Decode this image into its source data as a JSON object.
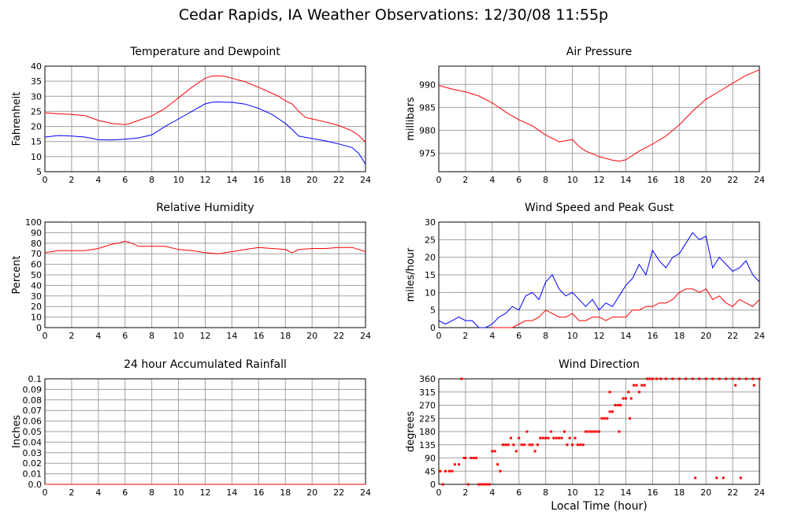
{
  "page": {
    "title": "Cedar Rapids, IA Weather Observations: 12/30/08 11:55p",
    "xlabel": "Local Time (hour)"
  },
  "chart_data": [
    {
      "id": "temp",
      "type": "line",
      "title": "Temperature and Dewpoint",
      "xlabel": "",
      "ylabel": "Fahrenheit",
      "xlim": [
        0,
        24
      ],
      "ylim": [
        5,
        40
      ],
      "xticks": [
        0,
        2,
        4,
        6,
        8,
        10,
        12,
        14,
        16,
        18,
        20,
        22,
        24
      ],
      "yticks": [
        5,
        10,
        15,
        20,
        25,
        30,
        35,
        40
      ],
      "grid": true,
      "series": [
        {
          "name": "",
          "color": "#ff0000",
          "x": [
            0,
            1,
            2,
            3,
            4,
            4.5,
            5,
            5.5,
            6,
            6.5,
            7,
            8,
            9,
            10,
            11,
            12,
            12.5,
            13,
            13.5,
            14,
            15,
            16,
            17,
            17.5,
            18,
            18.5,
            19,
            19.5,
            20,
            21,
            22,
            23,
            23.5,
            24
          ],
          "y": [
            24.5,
            24.2,
            24.0,
            23.6,
            22.0,
            21.5,
            21.0,
            20.8,
            20.6,
            21.2,
            22.0,
            23.5,
            26.0,
            29.5,
            33.0,
            36.0,
            36.7,
            36.8,
            36.6,
            36.0,
            34.8,
            33.0,
            31.0,
            30.0,
            28.5,
            27.5,
            25.0,
            23.0,
            22.5,
            21.5,
            20.3,
            18.5,
            17.0,
            14.8
          ]
        },
        {
          "name": "",
          "color": "#0000ff",
          "x": [
            0,
            1,
            2,
            3,
            4,
            5,
            6,
            7,
            8,
            9,
            10,
            11,
            12,
            12.5,
            13,
            13.5,
            14,
            15,
            16,
            17,
            17.5,
            18,
            18.5,
            19,
            20,
            21,
            22,
            23,
            23.5,
            24
          ],
          "y": [
            16.5,
            17.0,
            16.8,
            16.5,
            15.6,
            15.5,
            15.8,
            16.2,
            17.2,
            20.0,
            22.5,
            25.0,
            27.5,
            28.0,
            28.2,
            28.0,
            28.0,
            27.4,
            26.0,
            24.0,
            22.5,
            21.0,
            19.0,
            16.8,
            16.0,
            15.2,
            14.2,
            13.0,
            11.0,
            7.5
          ]
        }
      ]
    },
    {
      "id": "pressure",
      "type": "line",
      "title": "Air Pressure",
      "xlabel": "",
      "ylabel": "millibars",
      "xlim": [
        0,
        24
      ],
      "ylim": [
        971,
        994
      ],
      "xticks": [
        0,
        2,
        4,
        6,
        8,
        10,
        12,
        14,
        16,
        18,
        20,
        22,
        24
      ],
      "yticks": [
        975,
        980,
        985,
        990
      ],
      "grid": true,
      "series": [
        {
          "name": "",
          "color": "#ff0000",
          "x": [
            0,
            1,
            2,
            3,
            4,
            5,
            6,
            7,
            8,
            9,
            10,
            10.5,
            11,
            12,
            13,
            13.5,
            14,
            15,
            16,
            17,
            18,
            19,
            20,
            21,
            22,
            23,
            24
          ],
          "y": [
            989.8,
            989.0,
            988.4,
            987.5,
            986.0,
            984.0,
            982.3,
            981.0,
            979.0,
            977.5,
            978.0,
            976.5,
            975.5,
            974.3,
            973.5,
            973.3,
            973.6,
            975.5,
            977.0,
            978.8,
            981.2,
            984.2,
            986.8,
            988.5,
            990.3,
            992.0,
            993.2
          ]
        }
      ]
    },
    {
      "id": "humidity",
      "type": "line",
      "title": "Relative Humidity",
      "xlabel": "",
      "ylabel": "Percent",
      "xlim": [
        0,
        24
      ],
      "ylim": [
        0,
        100
      ],
      "xticks": [
        0,
        2,
        4,
        6,
        8,
        10,
        12,
        14,
        16,
        18,
        20,
        22,
        24
      ],
      "yticks": [
        0,
        10,
        20,
        30,
        40,
        50,
        60,
        70,
        80,
        90,
        100
      ],
      "grid": true,
      "series": [
        {
          "name": "",
          "color": "#ff0000",
          "x": [
            0,
            1,
            2,
            3,
            4,
            5,
            5.5,
            6,
            6.5,
            7,
            8,
            9,
            10,
            11,
            12,
            13,
            14,
            15,
            16,
            17,
            18,
            18.5,
            19,
            20,
            21,
            22,
            23,
            23.5,
            24
          ],
          "y": [
            71,
            73,
            73,
            73,
            75,
            79,
            80,
            82,
            80,
            77,
            77,
            77,
            74,
            73,
            71,
            70,
            72,
            74,
            76,
            75,
            74,
            71,
            74,
            75,
            75,
            76,
            76,
            74,
            72
          ]
        }
      ]
    },
    {
      "id": "wind",
      "type": "line",
      "title": "Wind Speed and Peak Gust",
      "xlabel": "",
      "ylabel": "miles/hour",
      "xlim": [
        0,
        24
      ],
      "ylim": [
        0,
        30
      ],
      "xticks": [
        0,
        2,
        4,
        6,
        8,
        10,
        12,
        14,
        16,
        18,
        20,
        22,
        24
      ],
      "yticks": [
        0,
        5,
        10,
        15,
        20,
        25,
        30
      ],
      "grid": true,
      "series": [
        {
          "name": "",
          "color": "#0000ff",
          "x": [
            0,
            0.5,
            1,
            1.5,
            2,
            2.5,
            3,
            3.5,
            4,
            4.5,
            5,
            5.5,
            6,
            6.5,
            7,
            7.5,
            8,
            8.5,
            9,
            9.5,
            10,
            10.5,
            11,
            11.5,
            12,
            12.5,
            13,
            13.5,
            14,
            14.5,
            15,
            15.5,
            16,
            16.5,
            17,
            17.5,
            18,
            18.5,
            19,
            19.5,
            20,
            20.5,
            21,
            21.5,
            22,
            22.5,
            23,
            23.5,
            24
          ],
          "y": [
            2,
            1,
            2,
            3,
            2,
            2,
            0,
            0,
            1,
            3,
            4,
            6,
            5,
            9,
            10,
            8,
            13,
            15,
            11,
            9,
            10,
            8,
            6,
            8,
            5,
            7,
            6,
            9,
            12,
            14,
            18,
            15,
            22,
            19,
            17,
            20,
            21,
            24,
            27,
            25,
            26,
            17,
            20,
            18,
            16,
            17,
            19,
            15,
            13
          ]
        },
        {
          "name": "",
          "color": "#ff0000",
          "x": [
            4,
            4.5,
            5,
            5.5,
            6,
            6.5,
            7,
            7.5,
            8,
            8.5,
            9,
            9.5,
            10,
            10.5,
            11,
            11.5,
            12,
            12.5,
            13,
            13.5,
            14,
            14.5,
            15,
            15.5,
            16,
            16.5,
            17,
            17.5,
            18,
            18.5,
            19,
            19.5,
            20,
            20.5,
            21,
            21.5,
            22,
            22.5,
            23,
            23.5,
            24
          ],
          "y": [
            0,
            0,
            0,
            0,
            1,
            2,
            2,
            3,
            5,
            4,
            3,
            3,
            4,
            2,
            2,
            3,
            3,
            2,
            3,
            3,
            3,
            5,
            5,
            6,
            6,
            7,
            7,
            8,
            10,
            11,
            11,
            10,
            11,
            8,
            9,
            7,
            6,
            8,
            7,
            6,
            8
          ]
        }
      ]
    },
    {
      "id": "rain",
      "type": "line",
      "title": "24 hour Accumulated Rainfall",
      "xlabel": "",
      "ylabel": "Inches",
      "xlim": [
        0,
        24
      ],
      "ylim": [
        0,
        0.1
      ],
      "xticks": [
        0,
        2,
        4,
        6,
        8,
        10,
        12,
        14,
        16,
        18,
        20,
        22,
        24
      ],
      "yticks": [
        "0.0",
        "0.01",
        "0.02",
        "0.03",
        "0.04",
        "0.05",
        "0.06",
        "0.07",
        "0.08",
        "0.09",
        "0.1"
      ],
      "grid": true,
      "series": [
        {
          "name": "",
          "color": "#ff0000",
          "x": [
            0,
            24
          ],
          "y": [
            0,
            0
          ]
        }
      ]
    },
    {
      "id": "direction",
      "type": "scatter",
      "title": "Wind Direction",
      "xlabel": "Local Time (hour)",
      "ylabel": "degrees",
      "xlim": [
        0,
        24
      ],
      "ylim": [
        0,
        360
      ],
      "xticks": [
        0,
        2,
        4,
        6,
        8,
        10,
        12,
        14,
        16,
        18,
        20,
        22,
        24
      ],
      "yticks": [
        0,
        45,
        90,
        135,
        180,
        225,
        270,
        315,
        360
      ],
      "grid": true,
      "series": [
        {
          "name": "",
          "color": "#ff0000",
          "x": [
            0.1,
            0.3,
            0.5,
            0.8,
            1.0,
            1.2,
            1.5,
            1.7,
            1.9,
            2.0,
            2.2,
            2.4,
            2.6,
            2.8,
            3.0,
            3.2,
            3.4,
            3.6,
            3.8,
            4.0,
            4.2,
            4.4,
            4.6,
            4.8,
            5.0,
            5.2,
            5.4,
            5.6,
            5.8,
            6.0,
            6.2,
            6.4,
            6.6,
            6.8,
            7.0,
            7.2,
            7.4,
            7.6,
            7.8,
            8.0,
            8.2,
            8.4,
            8.6,
            8.8,
            9.0,
            9.2,
            9.4,
            9.6,
            9.8,
            10.0,
            10.2,
            10.4,
            10.6,
            10.8,
            11.0,
            11.2,
            11.4,
            11.6,
            11.8,
            12.0,
            12.2,
            12.4,
            12.6,
            12.8,
            13.0,
            13.2,
            13.4,
            13.6,
            13.8,
            14.0,
            14.2,
            14.4,
            14.6,
            14.8,
            15.0,
            15.2,
            15.4,
            15.6,
            15.8,
            16.0,
            16.3,
            16.6,
            17.0,
            17.5,
            18.0,
            18.5,
            19.0,
            19.5,
            20.0,
            20.5,
            21.0,
            21.5,
            22.0,
            22.5,
            23.0,
            23.5,
            24.0,
            19.2,
            20.8,
            21.3,
            22.6,
            23.6,
            22.2,
            12.8,
            13.5,
            14.3
          ],
          "y": [
            45,
            0,
            45,
            45,
            45,
            68,
            68,
            360,
            90,
            90,
            0,
            90,
            90,
            90,
            0,
            0,
            0,
            0,
            0,
            113,
            113,
            68,
            45,
            135,
            135,
            135,
            158,
            135,
            113,
            158,
            135,
            135,
            180,
            135,
            135,
            113,
            135,
            158,
            158,
            158,
            158,
            180,
            158,
            158,
            158,
            158,
            180,
            135,
            158,
            135,
            158,
            135,
            135,
            135,
            180,
            180,
            180,
            180,
            180,
            180,
            225,
            225,
            225,
            248,
            248,
            270,
            270,
            270,
            293,
            293,
            315,
            293,
            338,
            338,
            315,
            338,
            338,
            360,
            360,
            360,
            360,
            360,
            360,
            360,
            360,
            360,
            360,
            360,
            360,
            360,
            360,
            360,
            360,
            360,
            360,
            360,
            360,
            22,
            22,
            22,
            22,
            338,
            338,
            315,
            180,
            225
          ]
        }
      ]
    }
  ]
}
